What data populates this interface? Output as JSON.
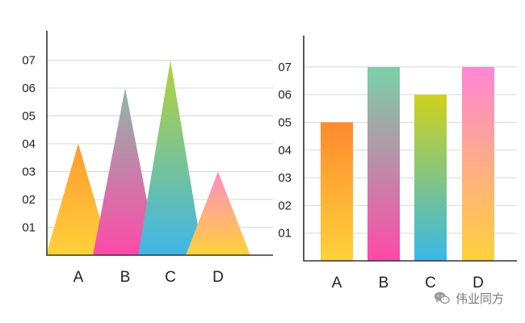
{
  "chart_data": [
    {
      "type": "triangle-bar",
      "categories": [
        "A",
        "B",
        "C",
        "D"
      ],
      "values": [
        4,
        6,
        7,
        3
      ],
      "yticks": [
        "01",
        "02",
        "03",
        "04",
        "05",
        "06",
        "07"
      ],
      "ylim": [
        0,
        8
      ],
      "grid": true,
      "gradients": [
        [
          "#ff9a2e",
          "#ffd23a"
        ],
        [
          "#8fb7a8",
          "#ff49a8"
        ],
        [
          "#b7d23a",
          "#3fb6e8"
        ],
        [
          "#ff8cc6",
          "#ffd23a"
        ]
      ]
    },
    {
      "type": "bar",
      "categories": [
        "A",
        "B",
        "C",
        "D"
      ],
      "values": [
        5,
        7,
        6,
        7
      ],
      "yticks": [
        "01",
        "02",
        "03",
        "04",
        "05",
        "06",
        "07"
      ],
      "ylim": [
        0,
        8
      ],
      "grid": true,
      "gradients": [
        [
          "#ff8a2e",
          "#ffd23a"
        ],
        [
          "#78d2a8",
          "#ff49a8"
        ],
        [
          "#d0d21a",
          "#38b8e8"
        ],
        [
          "#ff86d6",
          "#ffd23a"
        ]
      ]
    }
  ],
  "watermark": {
    "text": "伟业同方",
    "icon": "wechat-icon"
  }
}
